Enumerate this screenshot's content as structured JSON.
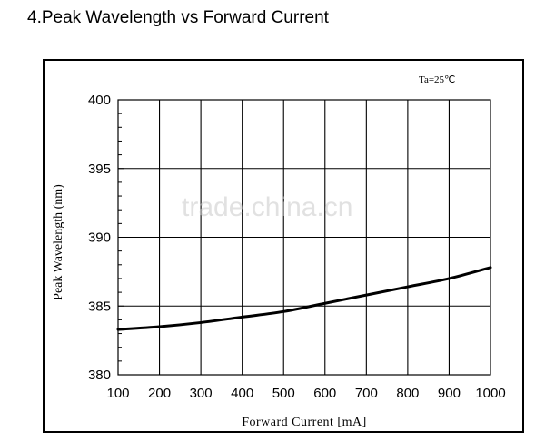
{
  "page": {
    "title": "4.Peak Wavelength vs Forward Current"
  },
  "watermark": "trade.china.cn",
  "chart_data": {
    "type": "line",
    "title": "",
    "annotation": "Ta=25℃",
    "xlabel": "Forward Current [mA]",
    "ylabel": "Peak Wavelength (nm)",
    "xlim": [
      100,
      1000
    ],
    "ylim": [
      380,
      400
    ],
    "xticks": [
      "100",
      "200",
      "300",
      "400",
      "500",
      "600",
      "700",
      "800",
      "900",
      "1000"
    ],
    "yticks": [
      "380",
      "385",
      "390",
      "395",
      "400"
    ],
    "grid": true,
    "series": [
      {
        "x": [
          100,
          200,
          300,
          400,
          500,
          600,
          700,
          800,
          900,
          1000
        ],
        "y": [
          383.3,
          383.5,
          383.8,
          384.2,
          384.6,
          385.2,
          385.8,
          386.4,
          387.0,
          387.8
        ]
      }
    ],
    "colors": {
      "line": "#000000",
      "grid": "#000000",
      "frame": "#000000"
    }
  }
}
